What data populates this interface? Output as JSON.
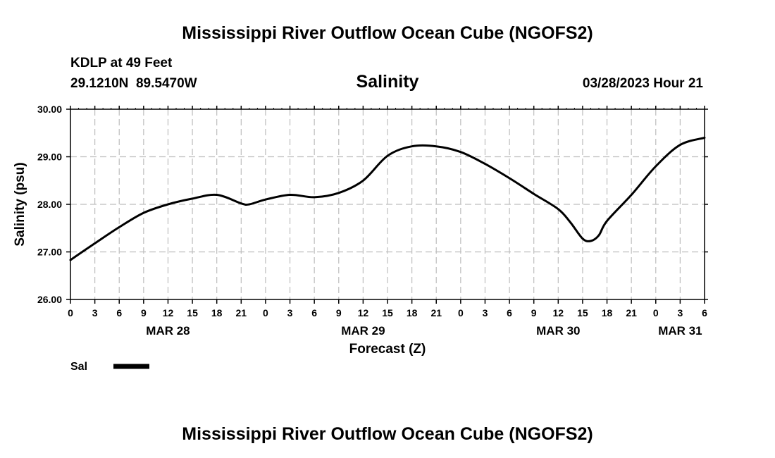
{
  "header": {
    "title": "Mississippi River Outflow Ocean Cube (NGOFS2)",
    "station_line": "KDLP at 49 Feet",
    "coords_line": "29.1210N  89.5470W",
    "variable": "Salinity",
    "datetime": "03/28/2023 Hour 21"
  },
  "footer": {
    "title": "Mississippi River Outflow Ocean Cube (NGOFS2)"
  },
  "chart_data": {
    "type": "line",
    "title": "Salinity",
    "xlabel": "Forecast (Z)",
    "ylabel": "Salinity (psu)",
    "xlim": [
      0,
      78
    ],
    "ylim": [
      26.0,
      30.0
    ],
    "y_ticks": [
      "26.00",
      "27.00",
      "28.00",
      "29.00",
      "30.00"
    ],
    "y_tick_values": [
      26,
      27,
      28,
      29,
      30
    ],
    "x_tick_values": [
      0,
      3,
      6,
      9,
      12,
      15,
      18,
      21,
      24,
      27,
      30,
      33,
      36,
      39,
      42,
      45,
      48,
      51,
      54,
      57,
      60,
      63,
      66,
      69,
      72,
      75,
      78
    ],
    "x_tick_labels": [
      "0",
      "3",
      "6",
      "9",
      "12",
      "15",
      "18",
      "21",
      "0",
      "3",
      "6",
      "9",
      "12",
      "15",
      "18",
      "21",
      "0",
      "3",
      "6",
      "9",
      "12",
      "15",
      "18",
      "21",
      "0",
      "3",
      "6"
    ],
    "date_labels": [
      {
        "hour": 12,
        "label": "MAR 28"
      },
      {
        "hour": 36,
        "label": "MAR 29"
      },
      {
        "hour": 60,
        "label": "MAR 30"
      },
      {
        "hour": 75,
        "label": "MAR 31"
      }
    ],
    "grid": true,
    "legend": [
      {
        "name": "Sal",
        "color": "#000000"
      }
    ],
    "series": [
      {
        "name": "Sal",
        "color": "#000000",
        "x": [
          0,
          3,
          6,
          9,
          12,
          15,
          18,
          21,
          22,
          24,
          27,
          30,
          33,
          36,
          39,
          42,
          45,
          48,
          51,
          54,
          57,
          60,
          61.5,
          63,
          64,
          65,
          66,
          69,
          72,
          75,
          78
        ],
        "y": [
          26.83,
          27.18,
          27.52,
          27.82,
          28.0,
          28.12,
          28.2,
          28.02,
          28.0,
          28.1,
          28.2,
          28.15,
          28.24,
          28.5,
          29.02,
          29.22,
          29.22,
          29.1,
          28.85,
          28.55,
          28.22,
          27.9,
          27.62,
          27.28,
          27.23,
          27.35,
          27.65,
          28.2,
          28.8,
          29.25,
          29.4
        ]
      }
    ]
  }
}
